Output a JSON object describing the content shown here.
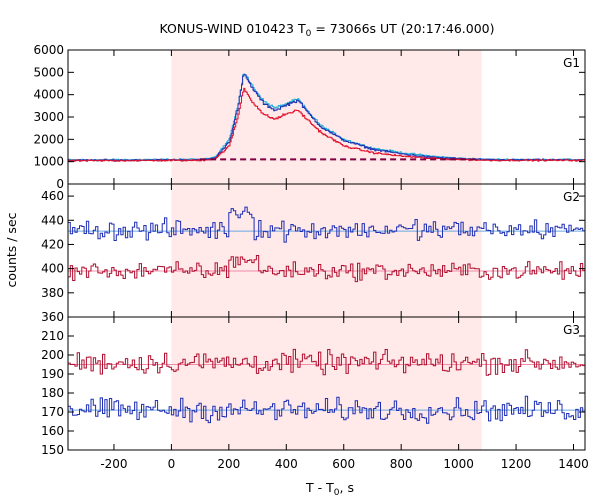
{
  "chart_data": {
    "type": "line",
    "title": {
      "main": "KONUS-WIND 010423 T",
      "sub": "0",
      "rest": " = 73066s UT (20:17:46.000)"
    },
    "xlabel": {
      "main": "T - T",
      "sub": "0",
      "rest": ", s"
    },
    "ylabel": "counts / sec",
    "xlim": [
      -360,
      1440
    ],
    "xticks": [
      -200,
      0,
      200,
      400,
      600,
      800,
      1000,
      1200,
      1400
    ],
    "shaded_interval": [
      0,
      1080
    ],
    "colors": {
      "shade": "#ffe9e9",
      "blue": "#1f2fb4",
      "cyan": "#20b0d8",
      "red": "#b01030",
      "bright_red": "#e0102a",
      "dark_red": "#800040",
      "bg_blue": "#6aa8e0",
      "bg_pink": "#f08ca8"
    },
    "panels": [
      {
        "name": "G1",
        "ylim": [
          0,
          6000
        ],
        "yticks": [
          0,
          1000,
          2000,
          3000,
          4000,
          5000,
          6000
        ],
        "background_level": 1100,
        "series": [
          {
            "color": "cyan",
            "points": [
              [
                -360,
                1080
              ],
              [
                100,
                1100
              ],
              [
                150,
                1200
              ],
              [
                200,
                2000
              ],
              [
                230,
                3500
              ],
              [
                250,
                5000
              ],
              [
                280,
                4400
              ],
              [
                320,
                3700
              ],
              [
                360,
                3400
              ],
              [
                400,
                3600
              ],
              [
                440,
                3800
              ],
              [
                470,
                3300
              ],
              [
                520,
                2600
              ],
              [
                600,
                2000
              ],
              [
                700,
                1600
              ],
              [
                800,
                1400
              ],
              [
                900,
                1250
              ],
              [
                1000,
                1150
              ],
              [
                1100,
                1100
              ],
              [
                1440,
                1090
              ]
            ]
          },
          {
            "color": "blue",
            "points": [
              [
                -360,
                1060
              ],
              [
                100,
                1080
              ],
              [
                150,
                1150
              ],
              [
                200,
                1900
              ],
              [
                230,
                3400
              ],
              [
                250,
                4950
              ],
              [
                280,
                4300
              ],
              [
                320,
                3600
              ],
              [
                360,
                3300
              ],
              [
                400,
                3550
              ],
              [
                440,
                3750
              ],
              [
                470,
                3250
              ],
              [
                520,
                2550
              ],
              [
                600,
                1950
              ],
              [
                700,
                1550
              ],
              [
                800,
                1350
              ],
              [
                900,
                1200
              ],
              [
                1000,
                1130
              ],
              [
                1100,
                1080
              ],
              [
                1440,
                1080
              ]
            ]
          },
          {
            "color": "bright_red",
            "points": [
              [
                -360,
                1040
              ],
              [
                100,
                1060
              ],
              [
                150,
                1120
              ],
              [
                200,
                1700
              ],
              [
                230,
                3000
              ],
              [
                250,
                4300
              ],
              [
                280,
                3700
              ],
              [
                320,
                3100
              ],
              [
                360,
                2900
              ],
              [
                400,
                3150
              ],
              [
                440,
                3300
              ],
              [
                470,
                2900
              ],
              [
                520,
                2300
              ],
              [
                600,
                1700
              ],
              [
                700,
                1400
              ],
              [
                800,
                1250
              ],
              [
                900,
                1150
              ],
              [
                1000,
                1100
              ],
              [
                1100,
                1060
              ],
              [
                1440,
                1060
              ]
            ]
          }
        ],
        "baseline": {
          "color": "dark_red",
          "dashed": true,
          "value": 1100,
          "from": 100,
          "to": 1060
        }
      },
      {
        "name": "G2",
        "ylim": [
          360,
          470
        ],
        "yticks": [
          360,
          380,
          400,
          420,
          440,
          460
        ],
        "series": [
          {
            "color": "blue",
            "mean": 432,
            "noise": 7,
            "bump": {
              "from": 200,
              "to": 280,
              "amp": 20
            }
          },
          {
            "color": "red",
            "mean": 398,
            "noise": 6,
            "bump": {
              "from": 200,
              "to": 300,
              "amp": 12
            }
          }
        ],
        "background_lines": [
          {
            "color": "bg_blue",
            "value": 431
          },
          {
            "color": "bg_pink",
            "value": 398
          }
        ]
      },
      {
        "name": "G3",
        "ylim": [
          150,
          220
        ],
        "yticks": [
          150,
          160,
          170,
          180,
          190,
          200,
          210
        ],
        "series": [
          {
            "color": "red",
            "mean": 196,
            "noise": 5
          },
          {
            "color": "blue",
            "mean": 171,
            "noise": 5
          }
        ],
        "background_lines": [
          {
            "color": "bg_pink",
            "value": 195
          },
          {
            "color": "bg_blue",
            "value": 171
          }
        ]
      }
    ]
  }
}
